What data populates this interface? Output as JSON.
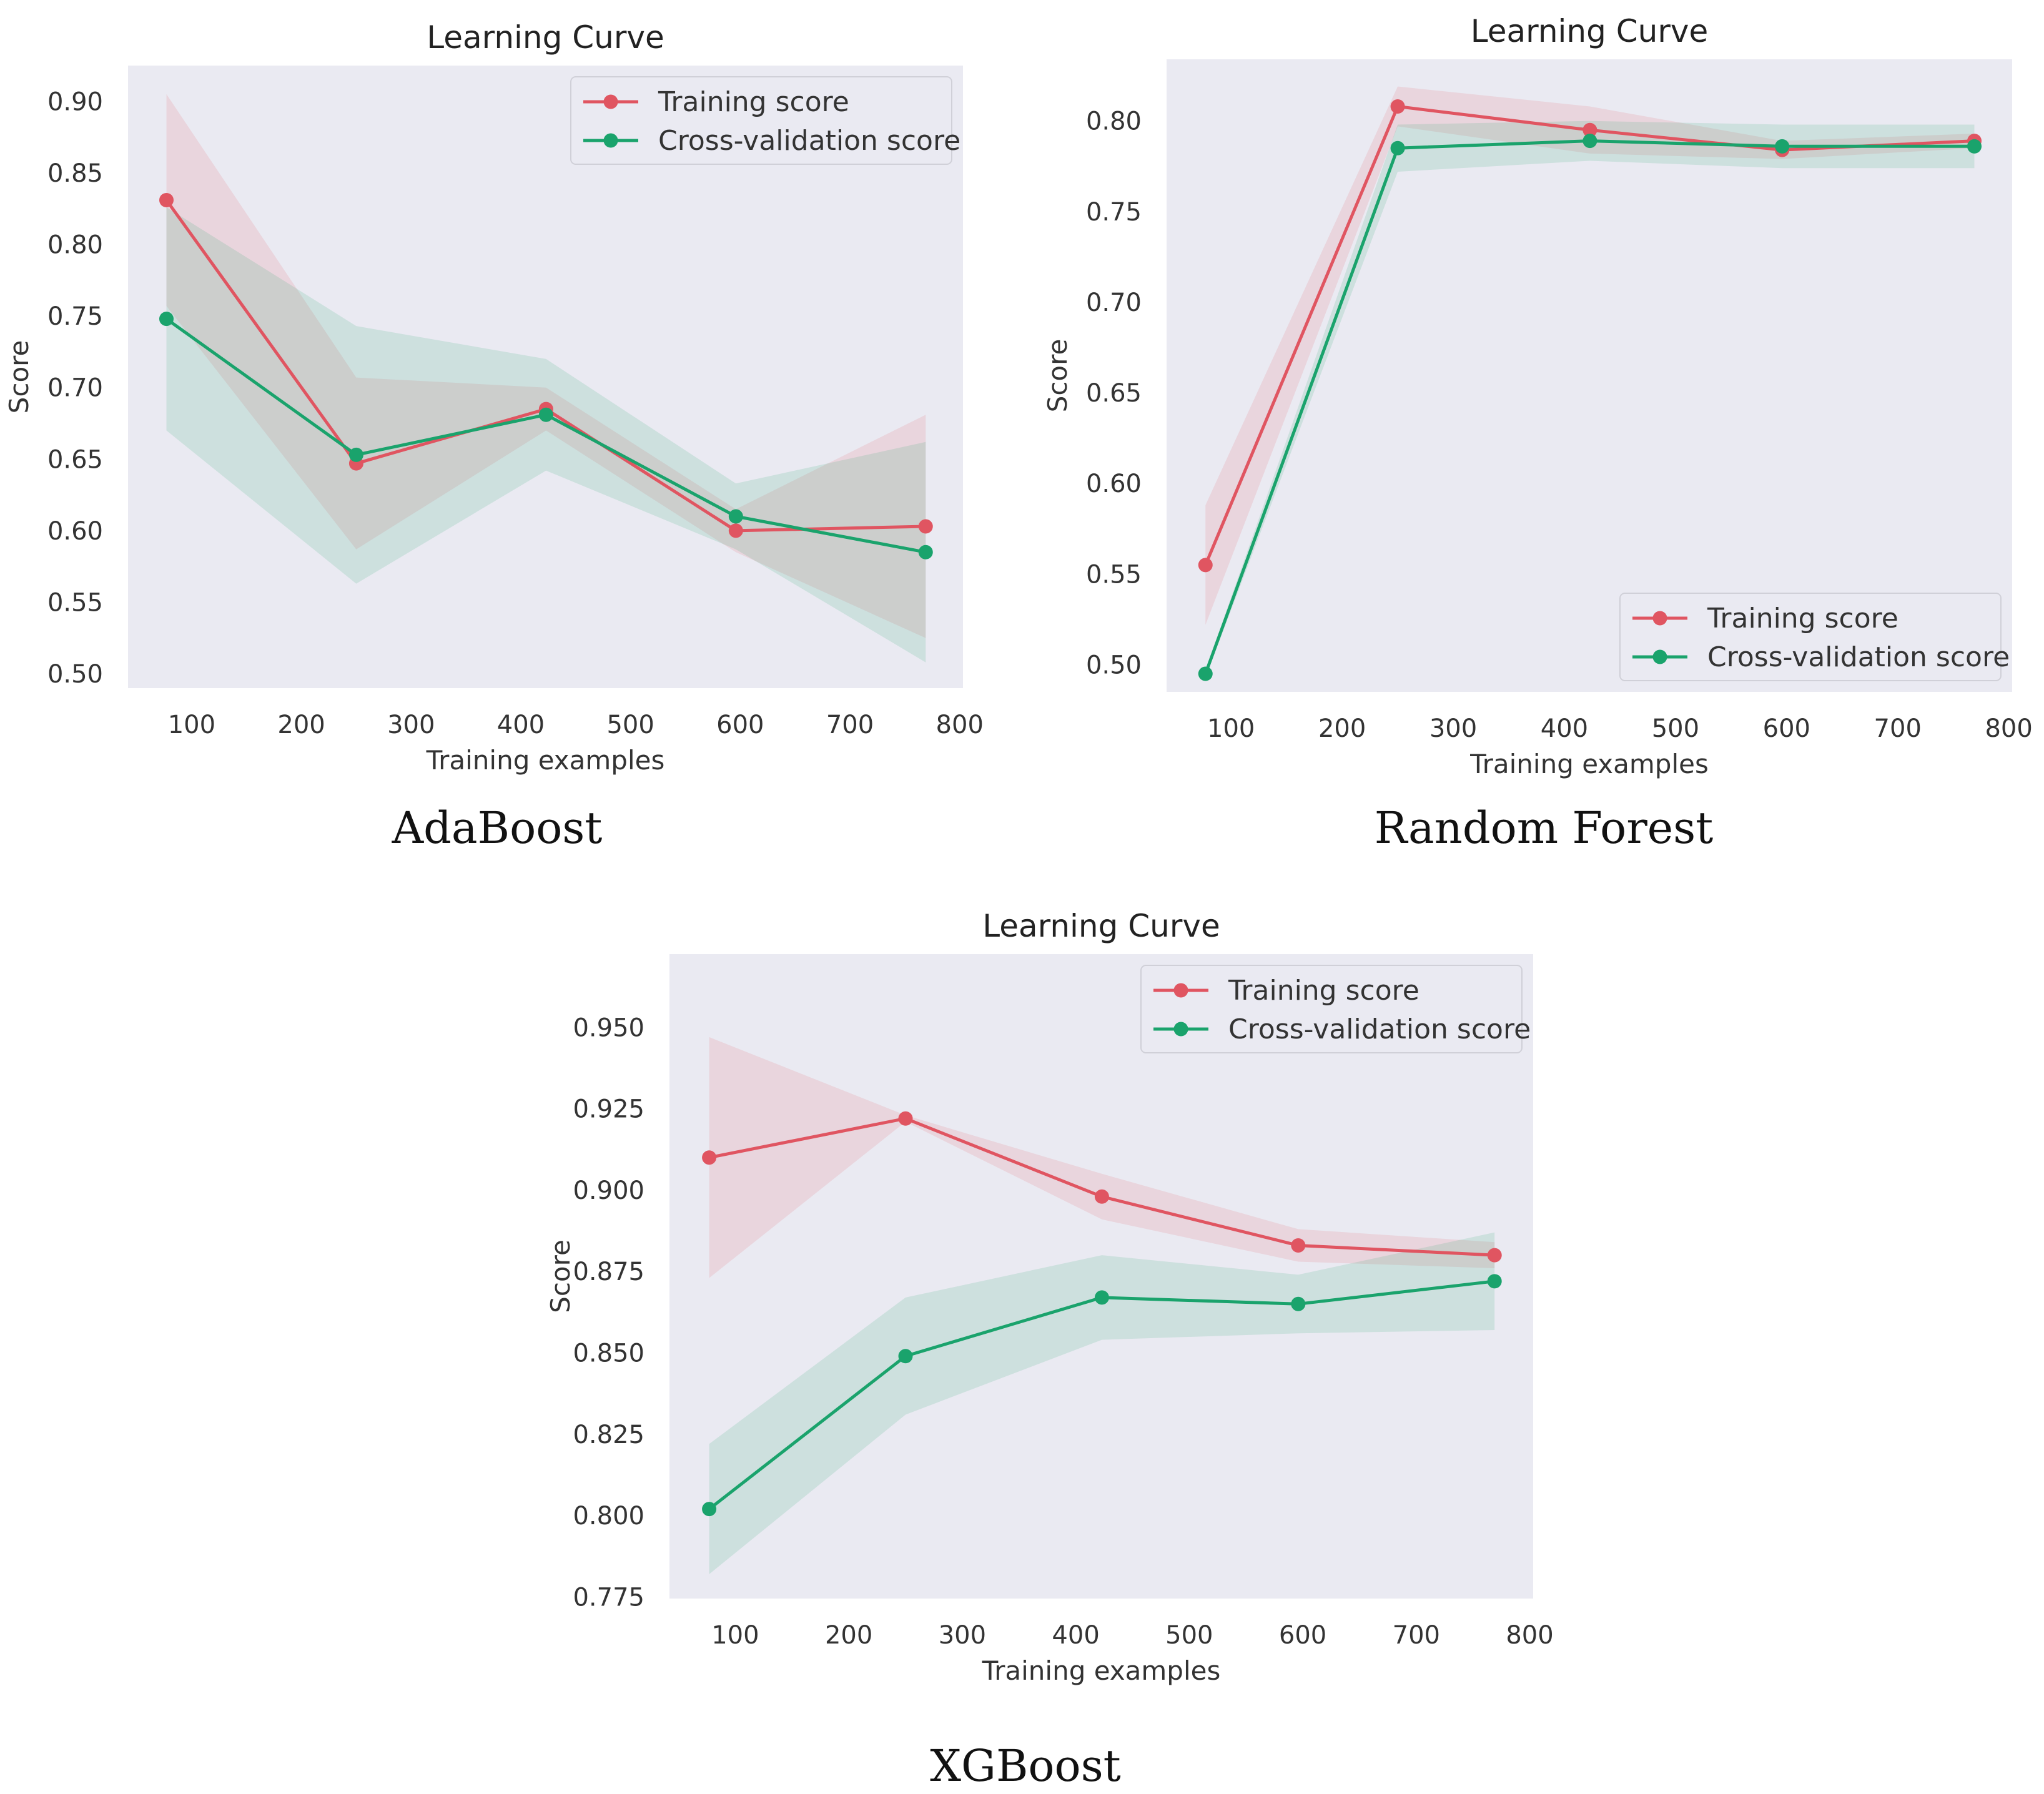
{
  "colors": {
    "training": "#e05561",
    "cv": "#1aa36c",
    "plot_bg": "#eaeaf2",
    "frame_bg": "#ffffff"
  },
  "chart_data": [
    {
      "type": "line",
      "title": "Learning Curve",
      "caption": "AdaBoost",
      "xlabel": "Training examples",
      "ylabel": "Score",
      "xlim": [
        42,
        803
      ],
      "ylim": [
        0.49,
        0.925
      ],
      "xticks": [
        100,
        200,
        300,
        400,
        500,
        600,
        700,
        800
      ],
      "yticks": [
        0.5,
        0.55,
        0.6,
        0.65,
        0.7,
        0.75,
        0.8,
        0.85,
        0.9
      ],
      "ytick_decimals": 2,
      "legend_position": "top-right",
      "grid": false,
      "x": [
        77,
        250,
        423,
        596,
        769
      ],
      "series": [
        {
          "name": "Training score",
          "color_key": "training",
          "values": [
            0.831,
            0.647,
            0.685,
            0.6,
            0.603
          ],
          "lower": [
            0.757,
            0.587,
            0.67,
            0.585,
            0.525
          ],
          "upper": [
            0.905,
            0.707,
            0.7,
            0.615,
            0.681
          ]
        },
        {
          "name": "Cross-validation score",
          "color_key": "cv",
          "values": [
            0.748,
            0.653,
            0.681,
            0.61,
            0.585
          ],
          "lower": [
            0.67,
            0.563,
            0.642,
            0.587,
            0.508
          ],
          "upper": [
            0.826,
            0.743,
            0.72,
            0.633,
            0.662
          ]
        }
      ]
    },
    {
      "type": "line",
      "title": "Learning Curve",
      "caption": "Random Forest",
      "xlabel": "Training examples",
      "ylabel": "Score",
      "xlim": [
        42,
        803
      ],
      "ylim": [
        0.485,
        0.834
      ],
      "xticks": [
        100,
        200,
        300,
        400,
        500,
        600,
        700,
        800
      ],
      "yticks": [
        0.5,
        0.55,
        0.6,
        0.65,
        0.7,
        0.75,
        0.8
      ],
      "ytick_decimals": 2,
      "legend_position": "bottom-right",
      "grid": false,
      "x": [
        77,
        250,
        423,
        596,
        769
      ],
      "series": [
        {
          "name": "Training score",
          "color_key": "training",
          "values": [
            0.555,
            0.808,
            0.795,
            0.784,
            0.789
          ],
          "lower": [
            0.522,
            0.797,
            0.782,
            0.779,
            0.785
          ],
          "upper": [
            0.588,
            0.819,
            0.808,
            0.789,
            0.793
          ]
        },
        {
          "name": "Cross-validation score",
          "color_key": "cv",
          "values": [
            0.495,
            0.785,
            0.789,
            0.786,
            0.786
          ],
          "lower": [
            0.493,
            0.772,
            0.778,
            0.774,
            0.774
          ],
          "upper": [
            0.497,
            0.798,
            0.8,
            0.798,
            0.798
          ]
        }
      ]
    },
    {
      "type": "line",
      "title": "Learning Curve",
      "caption": "XGBoost",
      "xlabel": "Training examples",
      "ylabel": "Score",
      "xlim": [
        42,
        803
      ],
      "ylim": [
        0.7745,
        0.9725
      ],
      "xticks": [
        100,
        200,
        300,
        400,
        500,
        600,
        700,
        800
      ],
      "yticks": [
        0.775,
        0.8,
        0.825,
        0.85,
        0.875,
        0.9,
        0.925,
        0.95
      ],
      "ytick_decimals": 3,
      "legend_position": "top-right",
      "grid": false,
      "x": [
        77,
        250,
        423,
        596,
        769
      ],
      "series": [
        {
          "name": "Training score",
          "color_key": "training",
          "values": [
            0.91,
            0.922,
            0.898,
            0.883,
            0.88
          ],
          "lower": [
            0.873,
            0.921,
            0.891,
            0.878,
            0.876
          ],
          "upper": [
            0.947,
            0.923,
            0.905,
            0.888,
            0.884
          ]
        },
        {
          "name": "Cross-validation score",
          "color_key": "cv",
          "values": [
            0.802,
            0.849,
            0.867,
            0.865,
            0.872
          ],
          "lower": [
            0.782,
            0.831,
            0.854,
            0.856,
            0.857
          ],
          "upper": [
            0.822,
            0.867,
            0.88,
            0.874,
            0.887
          ]
        }
      ]
    }
  ]
}
